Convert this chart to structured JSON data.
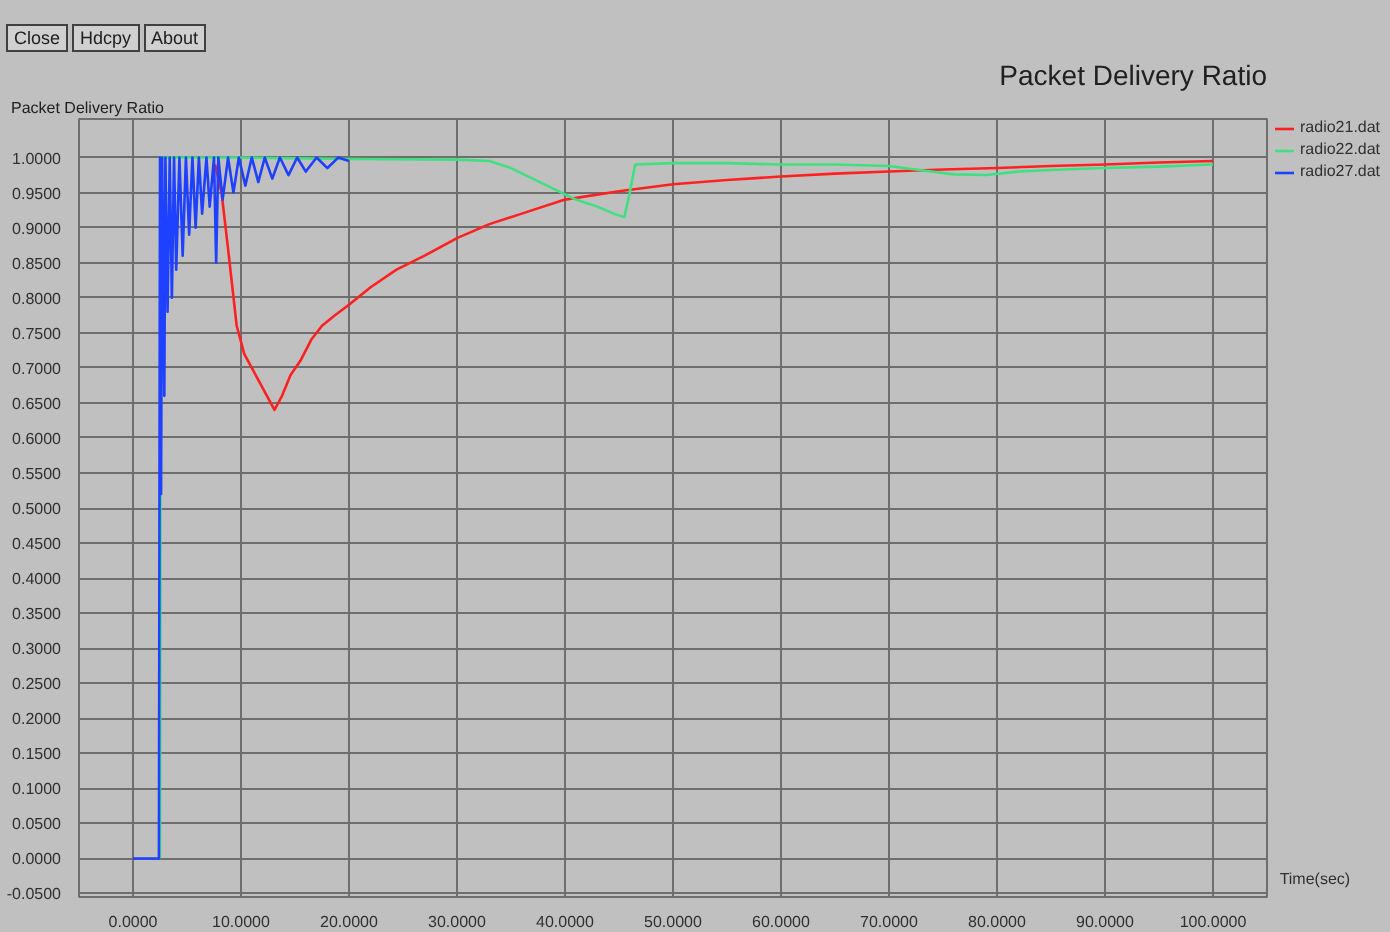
{
  "chart_data": {
    "type": "line",
    "title": "Packet Delivery Ratio",
    "xlabel": "Time(sec)",
    "ylabel": "Packet Delivery Ratio",
    "annotations": [
      "Close",
      "Hdcpy",
      "About"
    ],
    "xlim": [
      -5,
      105
    ],
    "ylim": [
      -0.055,
      1.055
    ],
    "xticks": [
      {
        "value": 0,
        "label": "0.0000"
      },
      {
        "value": 10,
        "label": "10.0000"
      },
      {
        "value": 20,
        "label": "20.0000"
      },
      {
        "value": 30,
        "label": "30.0000"
      },
      {
        "value": 40,
        "label": "40.0000"
      },
      {
        "value": 50,
        "label": "50.0000"
      },
      {
        "value": 60,
        "label": "60.0000"
      },
      {
        "value": 70,
        "label": "70.0000"
      },
      {
        "value": 80,
        "label": "80.0000"
      },
      {
        "value": 90,
        "label": "90.0000"
      },
      {
        "value": 100,
        "label": "100.0000"
      }
    ],
    "yticks": [
      {
        "value": -0.05,
        "label": "-0.0500"
      },
      {
        "value": 0,
        "label": "0.0000"
      },
      {
        "value": 0.05,
        "label": "0.0500"
      },
      {
        "value": 0.1,
        "label": "0.1000"
      },
      {
        "value": 0.15,
        "label": "0.1500"
      },
      {
        "value": 0.2,
        "label": "0.2000"
      },
      {
        "value": 0.25,
        "label": "0.2500"
      },
      {
        "value": 0.3,
        "label": "0.3000"
      },
      {
        "value": 0.35,
        "label": "0.3500"
      },
      {
        "value": 0.4,
        "label": "0.4000"
      },
      {
        "value": 0.45,
        "label": "0.4500"
      },
      {
        "value": 0.5,
        "label": "0.5000"
      },
      {
        "value": 0.55,
        "label": "0.5500"
      },
      {
        "value": 0.6,
        "label": "0.6000"
      },
      {
        "value": 0.65,
        "label": "0.6500"
      },
      {
        "value": 0.7,
        "label": "0.7000"
      },
      {
        "value": 0.75,
        "label": "0.7500"
      },
      {
        "value": 0.8,
        "label": "0.8000"
      },
      {
        "value": 0.85,
        "label": "0.8500"
      },
      {
        "value": 0.9,
        "label": "0.9000"
      },
      {
        "value": 0.95,
        "label": "0.9500"
      },
      {
        "value": 1,
        "label": "1.0000"
      }
    ],
    "grid": true,
    "legend": "top right",
    "line_style": "solid",
    "series": [
      {
        "name": "radio21.dat",
        "color": "#ff2020",
        "x": [
          7.6,
          8.2,
          8.8,
          9.6,
          10.3,
          11,
          11.7,
          12.4,
          13.1,
          13.8,
          14.6,
          15.5,
          16.5,
          17.5,
          18.7,
          20,
          22,
          24.4,
          27,
          30,
          33,
          36,
          40,
          45,
          50,
          55,
          60,
          65,
          70,
          75,
          80,
          85,
          90,
          95,
          100
        ],
        "values": [
          0.99,
          0.95,
          0.87,
          0.76,
          0.72,
          0.7,
          0.68,
          0.66,
          0.64,
          0.66,
          0.69,
          0.71,
          0.74,
          0.76,
          0.775,
          0.79,
          0.815,
          0.84,
          0.86,
          0.885,
          0.905,
          0.92,
          0.94,
          0.952,
          0.962,
          0.968,
          0.973,
          0.977,
          0.98,
          0.983,
          0.985,
          0.988,
          0.99,
          0.993,
          0.995
        ]
      },
      {
        "name": "radio22.dat",
        "color": "#40e080",
        "x": [
          2.5,
          2.6,
          10,
          20,
          30,
          33,
          35,
          37,
          39,
          41,
          43,
          44.5,
          45.5,
          46,
          46.5,
          50,
          55,
          60,
          65,
          70,
          73,
          76,
          79,
          82,
          86,
          90,
          95,
          100
        ],
        "values": [
          0,
          1,
          1,
          0.998,
          0.997,
          0.995,
          0.985,
          0.97,
          0.955,
          0.94,
          0.93,
          0.92,
          0.915,
          0.95,
          0.99,
          0.992,
          0.992,
          0.99,
          0.99,
          0.988,
          0.982,
          0.976,
          0.975,
          0.98,
          0.983,
          0.985,
          0.987,
          0.99
        ]
      },
      {
        "name": "radio27.dat",
        "color": "#1e40ff",
        "x": [
          0,
          2.4,
          2.5,
          2.6,
          2.7,
          2.9,
          3,
          3.2,
          3.4,
          3.6,
          3.8,
          4,
          4.3,
          4.6,
          4.9,
          5.2,
          5.5,
          5.8,
          6.1,
          6.4,
          6.8,
          7.1,
          7.5,
          7.7,
          7.9,
          8.3,
          8.8,
          9.3,
          9.8,
          10.4,
          11,
          11.6,
          12.2,
          12.9,
          13.6,
          14.4,
          15.2,
          16,
          17,
          18,
          19,
          20
        ],
        "values": [
          0,
          0,
          1,
          0.52,
          1,
          0.66,
          1,
          0.78,
          1,
          0.8,
          1,
          0.84,
          1,
          0.86,
          1,
          0.89,
          1,
          0.9,
          1,
          0.92,
          1,
          0.93,
          1,
          0.85,
          1,
          0.94,
          1,
          0.95,
          1,
          0.96,
          1,
          0.965,
          1,
          0.97,
          1,
          0.975,
          1,
          0.98,
          1,
          0.985,
          1,
          0.995
        ]
      }
    ]
  }
}
